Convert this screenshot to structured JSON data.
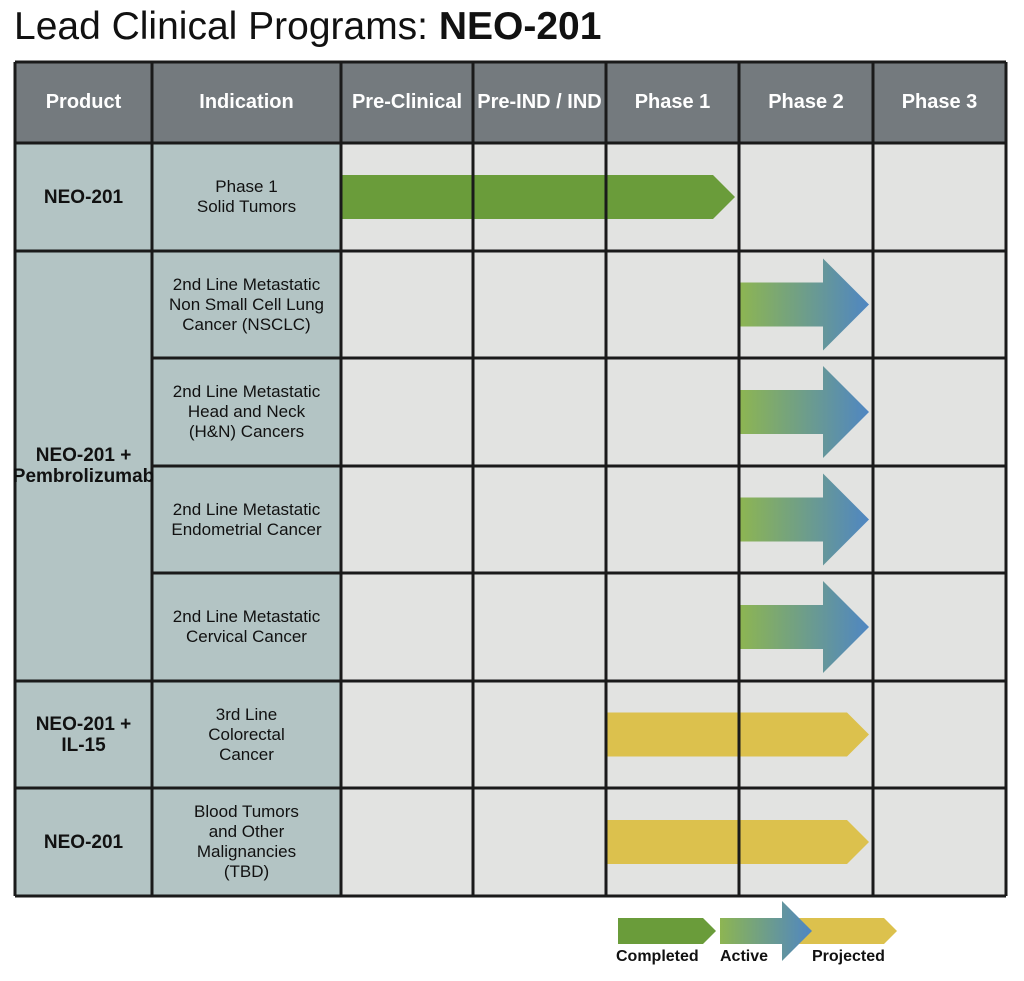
{
  "title": {
    "prefix": "Lead Clinical Programs: ",
    "emphasis": "NEO-201"
  },
  "columns": [
    "Product",
    "Indication",
    "Pre-Clinical",
    "Pre-IND / IND",
    "Phase 1",
    "Phase 2",
    "Phase 3"
  ],
  "products": [
    {
      "lines": [
        "NEO-201"
      ]
    },
    {
      "lines": [
        "NEO-201 +",
        "Pembrolizumab"
      ]
    },
    {
      "lines": [
        "NEO-201 +",
        "IL-15"
      ]
    },
    {
      "lines": [
        "NEO-201"
      ]
    }
  ],
  "indications": [
    {
      "lines": [
        "Phase 1",
        "Solid Tumors"
      ],
      "status": "Completed",
      "from_stage": "Pre-Clinical",
      "to_stage": "Phase 1"
    },
    {
      "lines": [
        "2nd Line Metastatic",
        "Non Small Cell Lung",
        "Cancer (NSCLC)"
      ],
      "status": "Active",
      "from_stage": "Phase 2",
      "to_stage": "Phase 2"
    },
    {
      "lines": [
        "2nd Line Metastatic",
        "Head and Neck",
        "(H&N) Cancers"
      ],
      "status": "Active",
      "from_stage": "Phase 2",
      "to_stage": "Phase 2"
    },
    {
      "lines": [
        "2nd Line Metastatic",
        "Endometrial Cancer"
      ],
      "status": "Active",
      "from_stage": "Phase 2",
      "to_stage": "Phase 2"
    },
    {
      "lines": [
        "2nd Line Metastatic",
        "Cervical Cancer"
      ],
      "status": "Active",
      "from_stage": "Phase 2",
      "to_stage": "Phase 2"
    },
    {
      "lines": [
        "3rd Line",
        "Colorectal",
        "Cancer"
      ],
      "status": "Projected",
      "from_stage": "Phase 1",
      "to_stage": "Phase 2"
    },
    {
      "lines": [
        "Blood Tumors",
        "and Other",
        "Malignancies",
        "(TBD)"
      ],
      "status": "Projected",
      "from_stage": "Phase 1",
      "to_stage": "Phase 2"
    }
  ],
  "legend": {
    "completed": "Completed",
    "active": "Active",
    "projected": "Projected"
  },
  "colors": {
    "header_bg": "#747a7e",
    "label_bg": "#b3c4c4",
    "cell_bg": "#e2e3e1",
    "border": "#1a1a1a",
    "completed": "#6a9c3a",
    "active_start": "#8db552",
    "active_end": "#4f86c2",
    "projected": "#dcc14d"
  }
}
